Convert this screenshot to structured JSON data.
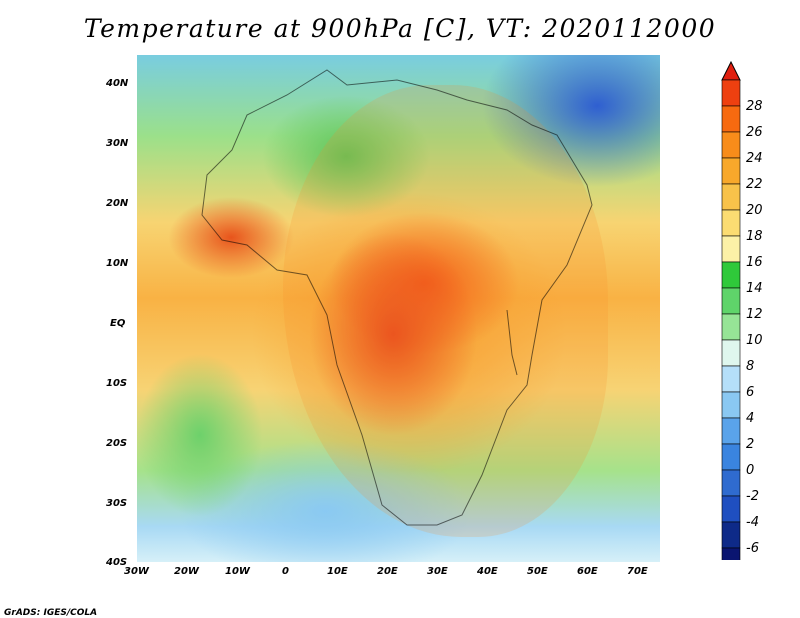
{
  "title": "Temperature at 900hPa [C], VT: 2020112000",
  "credit": "GrADS: IGES/COLA",
  "map": {
    "lat_labels": [
      "40N",
      "30N",
      "20N",
      "10N",
      "EQ",
      "10S",
      "20S",
      "30S",
      "40S"
    ],
    "lon_labels": [
      "30W",
      "20W",
      "10W",
      "0",
      "10E",
      "20E",
      "30E",
      "40E",
      "50E",
      "60E",
      "70E"
    ]
  },
  "colorbar": {
    "levels": [
      "28",
      "26",
      "24",
      "22",
      "20",
      "18",
      "16",
      "14",
      "12",
      "10",
      "8",
      "6",
      "4",
      "2",
      "0",
      "-2",
      "-4",
      "-6"
    ],
    "colors": [
      "#ee4010",
      "#f76a10",
      "#f88c1a",
      "#f8a82b",
      "#f8c24a",
      "#fbdc72",
      "#fcf1a7",
      "#2fc93a",
      "#5fd46a",
      "#96e496",
      "#dff7ee",
      "#b5dff9",
      "#8ac8f2",
      "#5aa3ea",
      "#3a84df",
      "#2f6bcf",
      "#1f4fc0",
      "#0e2a88",
      "#0a1570"
    ],
    "top_cap": "#e01f0f",
    "bottom_cap": "#d8d8f6"
  }
}
